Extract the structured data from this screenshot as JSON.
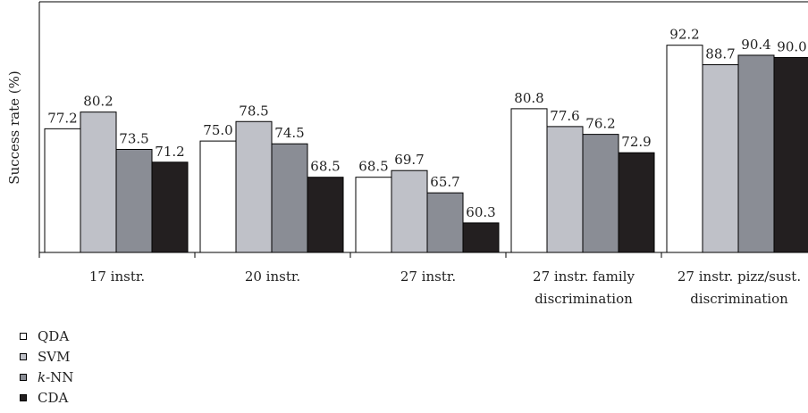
{
  "chart_data": {
    "type": "bar",
    "title": "",
    "xlabel": "",
    "ylabel": "Success rate (%)",
    "ylim": [
      55,
      100
    ],
    "grid": false,
    "legend_position": "bottom-left",
    "categories": [
      [
        "17 instr."
      ],
      [
        "20 instr."
      ],
      [
        "27 instr."
      ],
      [
        "27 instr. family",
        "discrimination"
      ],
      [
        "27 instr. pizz/sust.",
        "discrimination"
      ]
    ],
    "series": [
      {
        "name": "QDA",
        "color": "#ffffff",
        "values": [
          77.2,
          75.0,
          68.5,
          80.8,
          92.2
        ],
        "labels": [
          "77.2",
          "75.0",
          "68.5",
          "80.8",
          "92.2"
        ]
      },
      {
        "name": "SVM",
        "color": "#bfc1c8",
        "values": [
          80.2,
          78.5,
          69.7,
          77.6,
          88.7
        ],
        "labels": [
          "80.2",
          "78.5",
          "69.7",
          "77.6",
          "88.7"
        ]
      },
      {
        "name": "k-NN",
        "color": "#8a8d95",
        "values": [
          73.5,
          74.5,
          65.7,
          76.2,
          90.4
        ],
        "labels": [
          "73.5",
          "74.5",
          "65.7",
          "76.2",
          "90.4"
        ]
      },
      {
        "name": "CDA",
        "color": "#231f20",
        "values": [
          71.2,
          68.5,
          60.3,
          72.9,
          90.0
        ],
        "labels": [
          "71.2",
          "68.5",
          "60.3",
          "72.9",
          "90.0"
        ]
      }
    ]
  },
  "legend": {
    "items": [
      {
        "name": "QDA",
        "italic_prefix": "",
        "rest": "QDA"
      },
      {
        "name": "SVM",
        "italic_prefix": "",
        "rest": "SVM"
      },
      {
        "name": "k-NN",
        "italic_prefix": "k",
        "rest": "-NN"
      },
      {
        "name": "CDA",
        "italic_prefix": "",
        "rest": "CDA"
      }
    ]
  }
}
